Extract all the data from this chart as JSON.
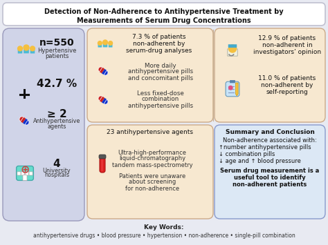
{
  "title_line1": "Detection of Non-Adherence to Antihypertensive Treatment by",
  "title_line2": "Measurements of Serum Drug Concentrations",
  "bg_color": "#e8eaf2",
  "panel_left_bg": "#d0d4e8",
  "panel_top_mid_bg": "#f7e8d0",
  "panel_top_right_bg": "#f7e8d0",
  "panel_bot_mid_bg": "#f7e8d0",
  "panel_bot_right_bg": "#dce8f5",
  "keywords_bold": "Key Words:",
  "keywords_line": "antihypertensive drugs • blood pressure • hypertension • non-adherence • single-pill combination",
  "left_bold": [
    "n=550",
    "42.7 %",
    "≥ 2",
    "4"
  ],
  "left_sub": [
    "Hypertensive\npatients",
    "",
    "Antihypertensive\nagents",
    "University\nhospitals"
  ],
  "top_mid_title": "7.3 % of patients\nnon-adherent by\nserum-drug analyses",
  "top_mid_text1_lines": [
    "More daily",
    "antihypertensive pills",
    "and concomitant pills"
  ],
  "top_mid_text2_lines": [
    "Less fixed-dose",
    "combination",
    "antihypertensive pills"
  ],
  "top_right_text1_lines": [
    "12.9 % of patients",
    "non-adherent in",
    "investigators’ opinion"
  ],
  "top_right_text2_lines": [
    "11.0 % of patients",
    "non-adherent by",
    "self-reporting"
  ],
  "bot_mid_title": "23 antihypertensive agents",
  "bot_mid_text1_lines": [
    "Ultra-high-performance",
    "liquid-chromatography",
    "tandem mass-spectrometry"
  ],
  "bot_mid_text2_lines": [
    "Patients were unaware",
    "about screening",
    "for non-adherence"
  ],
  "summary_title": "Summary and Conclusion",
  "summary_intro": "Non-adherence associated with:",
  "summary_items": [
    "↑number antihypertensive pills",
    "↓ combination pills",
    "↓ age and ↑ blood pressure"
  ],
  "summary_bold_lines": [
    "Serum drug measurement is a",
    "useful tool to identify",
    "non-adherent patients"
  ]
}
